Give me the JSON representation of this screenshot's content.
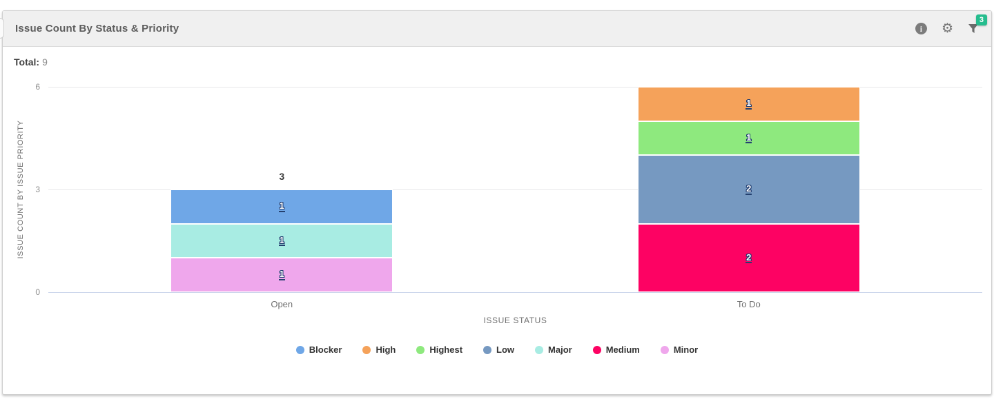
{
  "header": {
    "title": "Issue Count By Status & Priority",
    "icons": {
      "info_glyph": "i",
      "gear_glyph": "⚙",
      "filter_badge": "3"
    }
  },
  "summary": {
    "total_label": "Total:",
    "total_value": "9"
  },
  "chart_data": {
    "type": "bar",
    "stacked": true,
    "title": "",
    "xlabel": "ISSUE STATUS",
    "ylabel": "ISSUE COUNT BY ISSUE PRIORITY",
    "ylim": [
      0,
      6
    ],
    "yticks": [
      0,
      3,
      6
    ],
    "grid": true,
    "legend_position": "bottom",
    "categories": [
      "Open",
      "To Do"
    ],
    "series": [
      {
        "name": "Blocker",
        "color": "#6fa7e7",
        "values": [
          1,
          0
        ]
      },
      {
        "name": "High",
        "color": "#f5a25a",
        "values": [
          0,
          1
        ]
      },
      {
        "name": "Highest",
        "color": "#8ee97e",
        "values": [
          0,
          1
        ]
      },
      {
        "name": "Low",
        "color": "#7699c1",
        "values": [
          0,
          2
        ]
      },
      {
        "name": "Major",
        "color": "#a8ece3",
        "values": [
          1,
          0
        ]
      },
      {
        "name": "Medium",
        "color": "#fd0263",
        "values": [
          0,
          2
        ]
      },
      {
        "name": "Minor",
        "color": "#efa7ec",
        "values": [
          1,
          0
        ]
      }
    ],
    "stack_totals": [
      3,
      6
    ],
    "stack_total_labels": [
      "3",
      ""
    ]
  }
}
